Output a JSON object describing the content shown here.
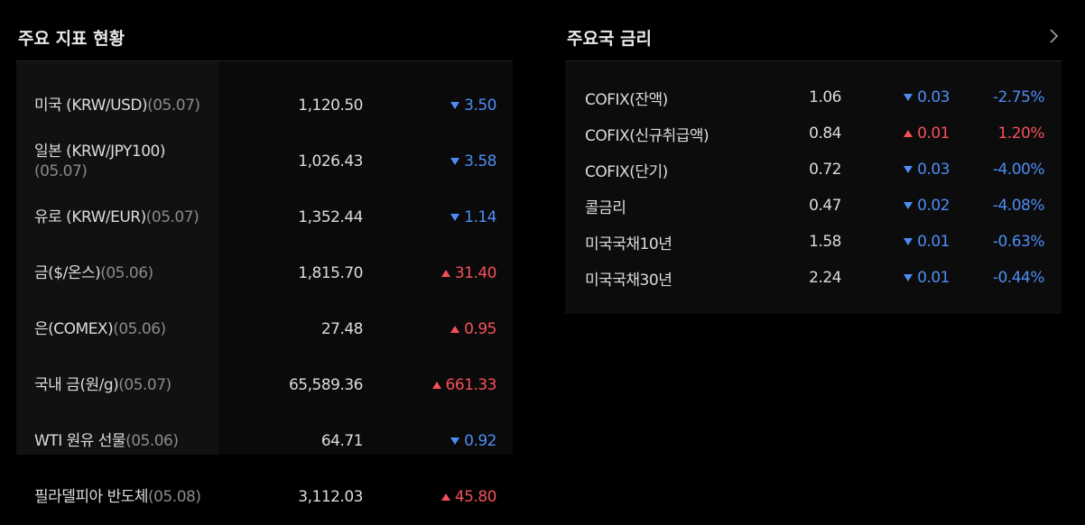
{
  "indicators": {
    "title": "주요 지표 현황",
    "rows": [
      {
        "name": "미국 (KRW/USD)",
        "date": "(05.07)",
        "value": "1,120.50",
        "change": "3.50",
        "direction": "down"
      },
      {
        "name": "일본 (KRW/JPY100)",
        "date": "(05.07)",
        "value": "1,026.43",
        "change": "3.58",
        "direction": "down"
      },
      {
        "name": "유로 (KRW/EUR)",
        "date": "(05.07)",
        "value": "1,352.44",
        "change": "1.14",
        "direction": "down"
      },
      {
        "name": "금($/온스)",
        "date": "(05.06)",
        "value": "1,815.70",
        "change": "31.40",
        "direction": "up"
      },
      {
        "name": "은(COMEX)",
        "date": "(05.06)",
        "value": "27.48",
        "change": "0.95",
        "direction": "up"
      },
      {
        "name": "국내 금(원/g)",
        "date": "(05.07)",
        "value": "65,589.36",
        "change": "661.33",
        "direction": "up"
      },
      {
        "name": "WTI 원유 선물",
        "date": "(05.06)",
        "value": "64.71",
        "change": "0.92",
        "direction": "down"
      },
      {
        "name": "필라델피아 반도체",
        "date": "(05.08)",
        "value": "3,112.03",
        "change": "45.80",
        "direction": "up"
      }
    ]
  },
  "rates": {
    "title": "주요국 금리",
    "rows": [
      {
        "name": "COFIX(잔액)",
        "value": "1.06",
        "change": "0.03",
        "direction": "down",
        "rate": "-2.75%"
      },
      {
        "name": "COFIX(신규취급액)",
        "value": "0.84",
        "change": "0.01",
        "direction": "up",
        "rate": "1.20%"
      },
      {
        "name": "COFIX(단기)",
        "value": "0.72",
        "change": "0.03",
        "direction": "down",
        "rate": "-4.00%"
      },
      {
        "name": "콜금리",
        "value": "0.47",
        "change": "0.02",
        "direction": "down",
        "rate": "-4.08%"
      },
      {
        "name": "미국국채10년",
        "value": "1.58",
        "change": "0.01",
        "direction": "down",
        "rate": "-0.63%"
      },
      {
        "name": "미국국채30년",
        "value": "2.24",
        "change": "0.01",
        "direction": "down",
        "rate": "-0.44%"
      }
    ]
  }
}
